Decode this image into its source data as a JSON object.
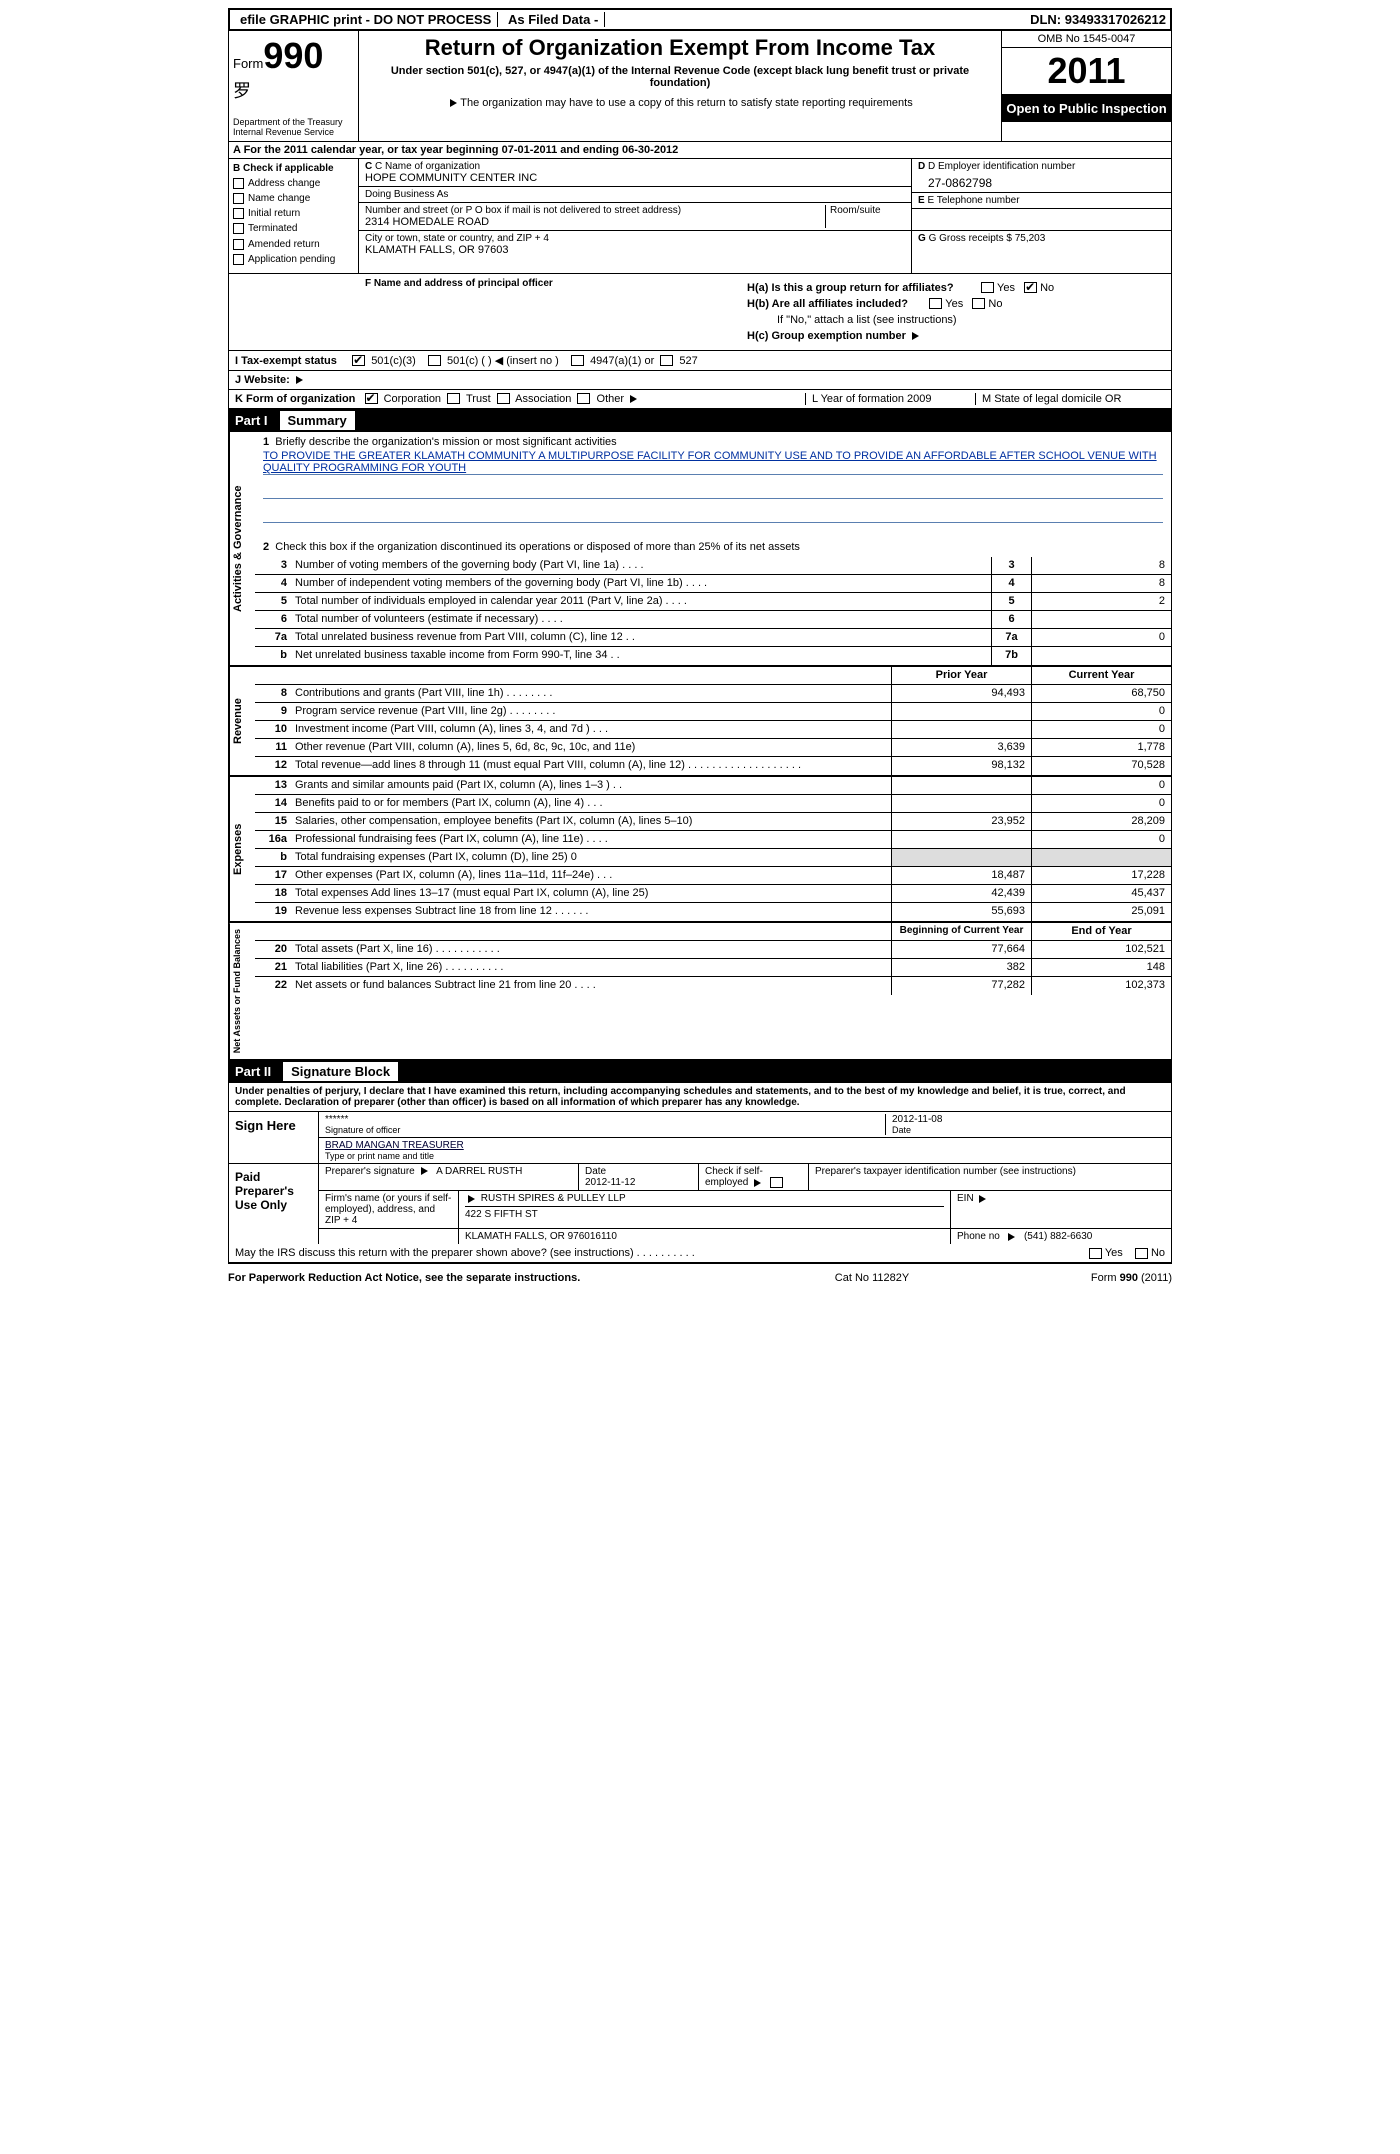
{
  "top": {
    "efile": "efile GRAPHIC print - DO NOT PROCESS",
    "asfiled": "As Filed Data -",
    "dln_lbl": "DLN:",
    "dln": "93493317026212"
  },
  "hdr": {
    "form_word": "Form",
    "form_num": "990",
    "dept1": "Department of the Treasury",
    "dept2": "Internal Revenue Service",
    "title": "Return of Organization Exempt From Income Tax",
    "sub": "Under section 501(c), 527, or 4947(a)(1) of the Internal Revenue Code (except black lung benefit trust or private foundation)",
    "note": "The organization may have to use a copy of this return to satisfy state reporting requirements",
    "omb": "OMB No 1545-0047",
    "year": "2011",
    "open": "Open to Public Inspection"
  },
  "rowA": "A  For the 2011 calendar year, or tax year beginning 07-01-2011    and ending 06-30-2012",
  "B": {
    "hdr": "B Check if applicable",
    "items": [
      "Address change",
      "Name change",
      "Initial return",
      "Terminated",
      "Amended return",
      "Application pending"
    ]
  },
  "C": {
    "name_lbl": "C Name of organization",
    "name": "HOPE COMMUNITY CENTER INC",
    "dba_lbl": "Doing Business As",
    "dba": "",
    "street_lbl": "Number and street (or P O  box if mail is not delivered to street address)",
    "room_lbl": "Room/suite",
    "street": "2314 HOMEDALE ROAD",
    "city_lbl": "City or town, state or country, and ZIP + 4",
    "city": "KLAMATH FALLS, OR  97603"
  },
  "D": {
    "lbl": "D Employer identification number",
    "val": "27-0862798"
  },
  "E": {
    "lbl": "E Telephone number",
    "val": ""
  },
  "G": {
    "lbl": "G Gross receipts $",
    "val": "75,203"
  },
  "F": {
    "lbl": "F    Name and address of principal officer"
  },
  "H": {
    "a": "H(a)  Is this a group return for affiliates?",
    "b": "H(b)  Are all affiliates included?",
    "bnote": "If \"No,\" attach a list  (see instructions)",
    "c": "H(c)   Group exemption number",
    "yes": "Yes",
    "no": "No"
  },
  "I": {
    "lbl": "I   Tax-exempt status",
    "o1": "501(c)(3)",
    "o2": "501(c) (   )",
    "o2b": "(insert no )",
    "o3": "4947(a)(1) or",
    "o4": "527"
  },
  "J": {
    "lbl": "J  Website:"
  },
  "K": {
    "lbl": "K Form of organization",
    "o1": "Corporation",
    "o2": "Trust",
    "o3": "Association",
    "o4": "Other",
    "L": "L Year of formation  2009",
    "M": "M State of legal domicile  OR"
  },
  "parts": {
    "p1n": "Part I",
    "p1t": "Summary",
    "p2n": "Part II",
    "p2t": "Signature Block"
  },
  "vlabels": {
    "g": "Activities & Governance",
    "r": "Revenue",
    "e": "Expenses",
    "n": "Net Assets or Fund Balances"
  },
  "s1": {
    "lbl": "Briefly describe the organization's mission or most significant activities",
    "text": "TO PROVIDE THE GREATER KLAMATH COMMUNITY A MULTIPURPOSE FACILITY FOR COMMUNITY USE AND TO PROVIDE AN AFFORDABLE AFTER SCHOOL VENUE WITH QUALITY PROGRAMMING FOR YOUTH"
  },
  "s2": "Check this box     if the organization discontinued its operations or disposed of more than 25% of its net assets",
  "lines_gov": [
    {
      "n": "3",
      "d": "Number of voting members of the governing body (Part VI, line 1a)  .   .   .   .",
      "box": "3",
      "v": "8"
    },
    {
      "n": "4",
      "d": "Number of independent voting members of the governing body (Part VI, line 1b)  .   .   .   .",
      "box": "4",
      "v": "8"
    },
    {
      "n": "5",
      "d": "Total number of individuals employed in calendar year 2011 (Part V, line 2a)  .   .   .   .",
      "box": "5",
      "v": "2"
    },
    {
      "n": "6",
      "d": "Total number of volunteers (estimate if necessary)   .    .    .    .",
      "box": "6",
      "v": ""
    },
    {
      "n": "7a",
      "d": "Total unrelated business revenue from Part VIII, column (C), line 12  .   .",
      "box": "7a",
      "v": "0"
    },
    {
      "n": "b",
      "d": "Net unrelated business taxable income from Form 990-T, line 34  .   .",
      "box": "7b",
      "v": ""
    }
  ],
  "rev_hdr": {
    "py": "Prior Year",
    "cy": "Current Year"
  },
  "lines_rev": [
    {
      "n": "8",
      "d": "Contributions and grants (Part VIII, line 1h)  .   .   .   .   .   .   .   .",
      "p": "94,493",
      "c": "68,750"
    },
    {
      "n": "9",
      "d": "Program service revenue (Part VIII, line 2g)   .   .   .   .   .   .   .   .",
      "p": "",
      "c": "0"
    },
    {
      "n": "10",
      "d": "Investment income (Part VIII, column (A), lines 3, 4, and 7d )   .   .   .",
      "p": "",
      "c": "0"
    },
    {
      "n": "11",
      "d": "Other revenue (Part VIII, column (A), lines 5, 6d, 8c, 9c, 10c, and 11e)",
      "p": "3,639",
      "c": "1,778"
    },
    {
      "n": "12",
      "d": "Total revenue—add lines 8 through 11 (must equal Part VIII, column (A), line 12) .  .  .  .  .  .  .  .  .  .  .  .  .  .  .  .  .  .  .",
      "p": "98,132",
      "c": "70,528"
    }
  ],
  "lines_exp": [
    {
      "n": "13",
      "d": "Grants and similar amounts paid (Part IX, column (A), lines 1–3 )  .   .",
      "p": "",
      "c": "0"
    },
    {
      "n": "14",
      "d": "Benefits paid to or for members (Part IX, column (A), line 4)   .   .   .",
      "p": "",
      "c": "0"
    },
    {
      "n": "15",
      "d": "Salaries, other compensation, employee benefits (Part IX, column (A), lines 5–10)",
      "p": "23,952",
      "c": "28,209"
    },
    {
      "n": "16a",
      "d": "Professional fundraising fees (Part IX, column (A), line 11e)  .   .   .   .",
      "p": "",
      "c": "0"
    },
    {
      "n": "b",
      "d": "Total fundraising expenses (Part IX, column (D), line 25)   0",
      "p": "shade",
      "c": "shade"
    },
    {
      "n": "17",
      "d": "Other expenses (Part IX, column (A), lines 11a–11d, 11f–24e)  .   .   .",
      "p": "18,487",
      "c": "17,228"
    },
    {
      "n": "18",
      "d": "Total expenses  Add lines 13–17 (must equal Part IX, column (A), line 25)",
      "p": "42,439",
      "c": "45,437"
    },
    {
      "n": "19",
      "d": "Revenue less expenses  Subtract line 18 from line 12 .   .   .   .   .   .",
      "p": "55,693",
      "c": "25,091"
    }
  ],
  "net_hdr": {
    "b": "Beginning of Current Year",
    "e": "End of Year"
  },
  "lines_net": [
    {
      "n": "20",
      "d": "Total assets (Part X, line 16)  .   .   .   .   .   .   .   .   .   .   .",
      "p": "77,664",
      "c": "102,521"
    },
    {
      "n": "21",
      "d": "Total liabilities (Part X, line 26)  .   .   .   .   .   .   .   .   .   .",
      "p": "382",
      "c": "148"
    },
    {
      "n": "22",
      "d": "Net assets or fund balances  Subtract line 21 from line 20  .   .   .   .",
      "p": "77,282",
      "c": "102,373"
    }
  ],
  "sig": {
    "intro": "Under penalties of perjury, I declare that I have examined this return, including accompanying schedules and statements, and to the best of my knowledge and belief, it is true, correct, and complete. Declaration of preparer (other than officer) is based on all information of which preparer has any knowledge.",
    "sign_here": "Sign Here",
    "stars": "******",
    "sig_off_lbl": "Signature of officer",
    "date_lbl": "Date",
    "date": "2012-11-08",
    "name": "BRAD MANGAN TREASURER",
    "name_lbl": "Type or print name and title"
  },
  "prep": {
    "hdr": "Paid Preparer's Use Only",
    "psig_lbl": "Preparer's signature",
    "psig": "A DARREL RUSTH",
    "pdate_lbl": "Date",
    "pdate": "2012-11-12",
    "self_lbl": "Check if self-employed",
    "ptin_lbl": "Preparer's taxpayer identification number (see instructions)",
    "firm_lbl": "Firm's name (or yours if self-employed), address, and ZIP + 4",
    "firm": "RUSTH SPIRES & PULLEY LLP",
    "addr1": "422 S FIFTH ST",
    "addr2": "KLAMATH FALLS, OR  976016110",
    "ein_lbl": "EIN",
    "phone_lbl": "Phone no",
    "phone": "(541) 882-6630"
  },
  "may": "May the IRS discuss this return with the preparer shown above? (see instructions)  .   .   .   .   .   .   .   .   .   .",
  "foot": {
    "l": "For Paperwork Reduction Act Notice, see the separate instructions.",
    "c": "Cat No  11282Y",
    "r": "Form 990 (2011)"
  },
  "yesno": {
    "yes": "Yes",
    "no": "No"
  }
}
